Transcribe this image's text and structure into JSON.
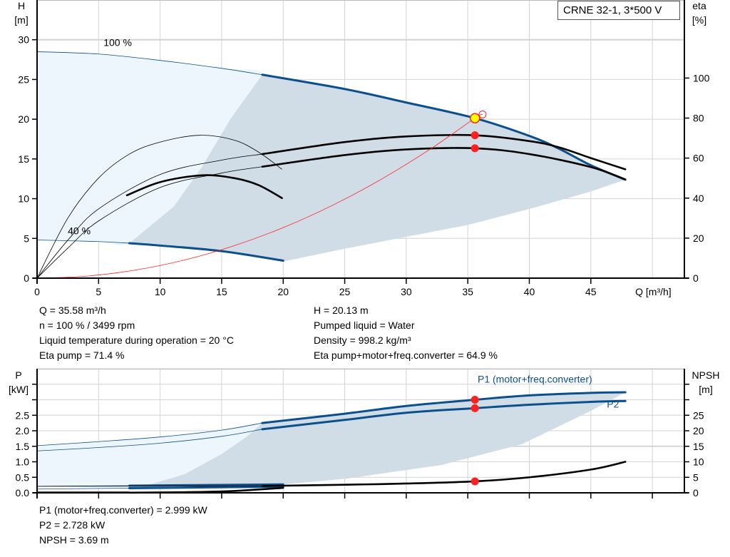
{
  "colors": {
    "curve_blue": "#0b4f8c",
    "black": "#000000",
    "red": "#ff2020",
    "shade_light": "#eef6fd",
    "shade_dark": "#d0dce6",
    "operating_point_fill": "#ffff00",
    "grid": "#d4d4d4"
  },
  "title_box": "CRNE 32-1, 3*500 V",
  "info_top_left": [
    "Q = 35.58 m³/h",
    "n = 100 % / 3499 rpm",
    "Liquid temperature during operation = 20 °C",
    "Eta pump = 71.4 %"
  ],
  "info_top_right": [
    "H = 20.13 m",
    "Pumped liquid = Water",
    "Density = 998.2 kg/m³",
    "Eta pump+motor+freq.converter = 64.9 %"
  ],
  "info_bottom": [
    "P1 (motor+freq.converter) = 2.999 kW",
    "P2 = 2.728 kW",
    "NPSH = 3.69 m"
  ],
  "chart_data": [
    {
      "type": "line",
      "xlabel": "Q [m³/h]",
      "ylabel": [
        "H",
        "[m]"
      ],
      "y2label": [
        "eta",
        "[%]"
      ],
      "xlim": [
        0,
        52.6
      ],
      "ylim": [
        0,
        35
      ],
      "y2lim": [
        0,
        139
      ],
      "xticks": [
        0,
        5,
        10,
        15,
        20,
        25,
        30,
        35,
        40,
        45
      ],
      "yticks": [
        0,
        5,
        10,
        15,
        20,
        25,
        30
      ],
      "y2ticks": [
        0,
        20,
        40,
        60,
        80,
        100
      ],
      "grid": true,
      "annotations": [
        {
          "text": "100 %",
          "x": 5.4,
          "y": 29.2
        },
        {
          "text": "40 %",
          "x": 2.5,
          "y": 5.5
        }
      ],
      "series": [
        {
          "key": "H100",
          "axis": "y",
          "color": "#0b4f8c",
          "thin": [
            [
              0,
              28.5
            ],
            [
              5,
              28.2
            ],
            [
              10,
              27.4
            ],
            [
              15,
              26.4
            ],
            [
              18.3,
              25.6
            ]
          ],
          "thick": [
            [
              18.3,
              25.6
            ],
            [
              25,
              23.8
            ],
            [
              30,
              22.1
            ],
            [
              35.58,
              20.13
            ],
            [
              40,
              17.9
            ],
            [
              42.4,
              16.3
            ],
            [
              45,
              14.2
            ],
            [
              47.8,
              12.4
            ]
          ]
        },
        {
          "key": "H40",
          "axis": "y",
          "color": "#0b4f8c",
          "thin": [
            [
              0,
              4.8
            ],
            [
              5,
              4.6
            ],
            [
              7.5,
              4.4
            ]
          ],
          "thick": [
            [
              7.5,
              4.4
            ],
            [
              10,
              4.1
            ],
            [
              15,
              3.4
            ],
            [
              20,
              2.2
            ]
          ]
        },
        {
          "key": "eta_pump_100",
          "axis": "y2",
          "color": "#000000",
          "thin": [
            [
              0,
              0
            ],
            [
              2.5,
              19
            ],
            [
              5,
              34.6
            ],
            [
              10,
              51.8
            ],
            [
              15,
              59
            ],
            [
              18.3,
              62
            ]
          ],
          "thick": [
            [
              18.3,
              62
            ],
            [
              25,
              68
            ],
            [
              30,
              70.8
            ],
            [
              35.58,
              71.4
            ],
            [
              40,
              68.5
            ],
            [
              42.4,
              65.4
            ],
            [
              45,
              60
            ],
            [
              47.8,
              54.4
            ]
          ]
        },
        {
          "key": "eta_total_100",
          "axis": "y2",
          "color": "#000000",
          "thin": [
            [
              0,
              0
            ],
            [
              2.5,
              15
            ],
            [
              5,
              28.6
            ],
            [
              10,
              45.3
            ],
            [
              15,
              52.5
            ],
            [
              18.3,
              55.7
            ]
          ],
          "thick": [
            [
              18.3,
              55.7
            ],
            [
              25,
              61.5
            ],
            [
              30,
              64.3
            ],
            [
              35.58,
              64.9
            ],
            [
              40,
              62
            ],
            [
              45,
              55.5
            ],
            [
              47.8,
              49.3
            ]
          ]
        },
        {
          "key": "eta_pump_40",
          "axis": "y2",
          "color": "#000000",
          "thin": [
            [
              0,
              0
            ],
            [
              2.5,
              30
            ],
            [
              5,
              50
            ],
            [
              7.5,
              62
            ],
            [
              10,
              68
            ],
            [
              13.2,
              71.4
            ],
            [
              16,
              69
            ],
            [
              18,
              63
            ],
            [
              19.9,
              54.4
            ]
          ],
          "thick": []
        },
        {
          "key": "eta_total_40",
          "axis": "y2",
          "color": "#000000",
          "thin": [],
          "thick": [
            [
              7.3,
              41.4
            ],
            [
              10,
              48
            ],
            [
              13.4,
              51.4
            ],
            [
              16,
              50
            ],
            [
              18,
              46.5
            ],
            [
              19.9,
              40
            ]
          ]
        },
        {
          "key": "system",
          "axis": "y",
          "color": "#ff2020",
          "thin": [
            [
              0,
              0
            ],
            [
              4,
              0.25
            ],
            [
              8,
              1.02
            ],
            [
              12,
              2.29
            ],
            [
              16,
              4.07
            ],
            [
              20,
              6.36
            ],
            [
              24,
              9.16
            ],
            [
              28,
              12.47
            ],
            [
              32,
              16.28
            ],
            [
              35.58,
              20.13
            ],
            [
              36.2,
              20.6
            ]
          ],
          "thick": []
        }
      ],
      "operating_points": [
        {
          "x": 35.58,
          "y": 20.13,
          "axis": "y",
          "style": "yellow"
        },
        {
          "x": 35.58,
          "y": 71.4,
          "axis": "y2"
        },
        {
          "x": 35.58,
          "y": 64.9,
          "axis": "y2"
        }
      ],
      "hollow_point": {
        "x": 36.2,
        "y": 20.6
      },
      "region_light": [
        [
          0,
          28.5
        ],
        [
          5,
          28.2
        ],
        [
          10,
          27.4
        ],
        [
          15,
          26.4
        ],
        [
          18.3,
          25.6
        ],
        [
          15.7,
          20
        ],
        [
          13.4,
          14
        ],
        [
          11.1,
          9
        ],
        [
          7.5,
          4.4
        ],
        [
          5,
          4.6
        ],
        [
          0,
          4.8
        ]
      ],
      "region_dark": [
        [
          7.5,
          4.4
        ],
        [
          11.1,
          9
        ],
        [
          13.4,
          14
        ],
        [
          15.7,
          20
        ],
        [
          18.3,
          25.6
        ],
        [
          25,
          23.8
        ],
        [
          30,
          22.1
        ],
        [
          35.58,
          20.13
        ],
        [
          40,
          17.9
        ],
        [
          42.4,
          16.3
        ],
        [
          45,
          14.2
        ],
        [
          47.8,
          12.4
        ],
        [
          45,
          10.9
        ],
        [
          40,
          8.7
        ],
        [
          35,
          6.7
        ],
        [
          30,
          5.2
        ],
        [
          25,
          3.7
        ],
        [
          20,
          2.1
        ],
        [
          15,
          3.4
        ],
        [
          10,
          4.1
        ]
      ]
    },
    {
      "type": "line",
      "ylabel": [
        "P",
        "[kW]"
      ],
      "y2label": [
        "NPSH",
        "[m]"
      ],
      "xlim": [
        0,
        52.6
      ],
      "ylim": [
        0,
        4.0
      ],
      "y2lim": [
        0,
        40
      ],
      "xticks": [
        0,
        5,
        10,
        15,
        20,
        25,
        30,
        35,
        40,
        45,
        50
      ],
      "yticks": [
        "0.0",
        "0.5",
        "1.0",
        "1.5",
        "2.0",
        "2.5"
      ],
      "y2ticks": [
        0,
        5,
        10,
        15,
        20,
        25
      ],
      "grid": true,
      "annotations": [
        {
          "text": "P1 (motor+freq.converter)",
          "x": 35.8,
          "y": 3.55
        },
        {
          "text": "P2",
          "x": 46.3,
          "y": 2.75
        }
      ],
      "series": [
        {
          "key": "P1_100",
          "axis": "y",
          "color": "#0b4f8c",
          "thin": [
            [
              0,
              1.52
            ],
            [
              5,
              1.65
            ],
            [
              10,
              1.8
            ],
            [
              15,
              2.02
            ],
            [
              18.3,
              2.25
            ]
          ],
          "thick": [
            [
              18.3,
              2.25
            ],
            [
              25,
              2.55
            ],
            [
              30,
              2.8
            ],
            [
              35.58,
              2.999
            ],
            [
              40,
              3.14
            ],
            [
              45,
              3.22
            ],
            [
              47.8,
              3.24
            ]
          ]
        },
        {
          "key": "P2_100",
          "axis": "y",
          "color": "#0b4f8c",
          "thin": [
            [
              0,
              1.35
            ],
            [
              5,
              1.46
            ],
            [
              10,
              1.6
            ],
            [
              15,
              1.82
            ],
            [
              18.3,
              2.05
            ]
          ],
          "thick": [
            [
              18.3,
              2.05
            ],
            [
              25,
              2.35
            ],
            [
              30,
              2.58
            ],
            [
              35.58,
              2.728
            ],
            [
              40,
              2.84
            ],
            [
              45,
              2.93
            ],
            [
              47.8,
              2.96
            ]
          ]
        },
        {
          "key": "P1_40",
          "axis": "y",
          "color": "#0b4f8c",
          "thin": [
            [
              0,
              0.21
            ],
            [
              7.5,
              0.23
            ]
          ],
          "thick": [
            [
              7.5,
              0.23
            ],
            [
              20,
              0.27
            ]
          ]
        },
        {
          "key": "P2_40",
          "axis": "y",
          "color": "#0b4f8c",
          "thin": [
            [
              0,
              0.12
            ],
            [
              7.5,
              0.15
            ]
          ],
          "thick": [
            [
              7.5,
              0.15
            ],
            [
              20,
              0.2
            ]
          ]
        },
        {
          "key": "NPSH_40",
          "axis": "y2",
          "color": "#000000",
          "thin": [
            [
              0,
              0.4
            ],
            [
              7.5,
              0.35
            ]
          ],
          "thick": [
            [
              7.5,
              0.05
            ],
            [
              12,
              0.2
            ],
            [
              16,
              0.6
            ],
            [
              20,
              1.6
            ]
          ]
        },
        {
          "key": "NPSH_100",
          "axis": "y2",
          "color": "#000000",
          "thin": [
            [
              0,
              2.1
            ],
            [
              18.3,
              2.2
            ]
          ],
          "thick": [
            [
              18.3,
              2.2
            ],
            [
              25,
              2.6
            ],
            [
              30,
              3.0
            ],
            [
              35.58,
              3.69
            ],
            [
              40,
              5.0
            ],
            [
              45,
              7.5
            ],
            [
              47.8,
              10
            ]
          ]
        }
      ],
      "operating_points": [
        {
          "x": 35.58,
          "y": 2.999,
          "axis": "y"
        },
        {
          "x": 35.58,
          "y": 2.728,
          "axis": "y"
        },
        {
          "x": 35.58,
          "y": 3.69,
          "axis": "y2"
        }
      ],
      "region_light": [
        [
          0,
          1.52
        ],
        [
          5,
          1.65
        ],
        [
          10,
          1.8
        ],
        [
          15,
          2.02
        ],
        [
          18.3,
          2.25
        ],
        [
          17,
          1.8
        ],
        [
          15,
          1.25
        ],
        [
          12,
          0.6
        ],
        [
          8.4,
          0.18
        ],
        [
          0,
          0.2
        ]
      ],
      "region_dark": [
        [
          8.4,
          0.18
        ],
        [
          12,
          0.6
        ],
        [
          15,
          1.25
        ],
        [
          17,
          1.8
        ],
        [
          18.3,
          2.25
        ],
        [
          25,
          2.55
        ],
        [
          30,
          2.8
        ],
        [
          35.58,
          2.999
        ],
        [
          40,
          3.14
        ],
        [
          45,
          3.22
        ],
        [
          47.8,
          3.24
        ],
        [
          45,
          2.64
        ],
        [
          39.4,
          1.57
        ],
        [
          32.9,
          0.9
        ],
        [
          25,
          0.45
        ],
        [
          20,
          0.27
        ]
      ]
    }
  ]
}
